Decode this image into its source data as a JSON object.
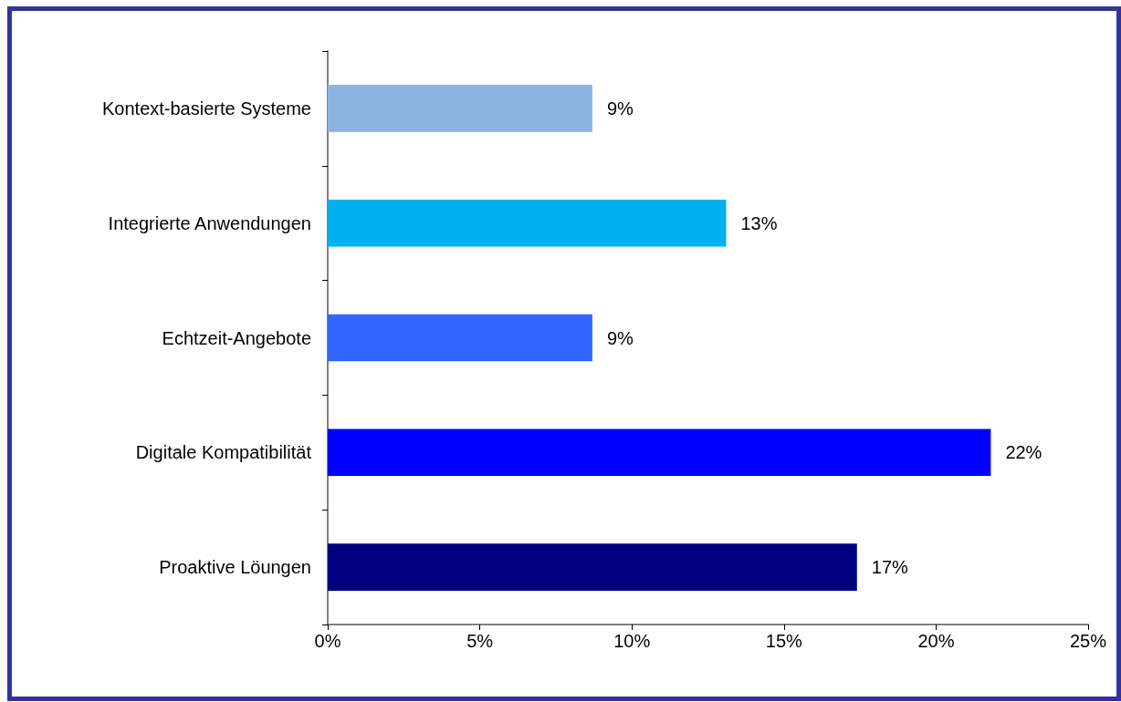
{
  "chart_data": {
    "type": "bar",
    "orientation": "horizontal",
    "categories": [
      "Kontext-basierte Systeme",
      "Integrierte Anwendungen",
      "Echtzeit-Angebote",
      "Digitale Kompatibilität",
      "Proaktive Löungen"
    ],
    "values": [
      8.7,
      13.1,
      8.7,
      21.8,
      17.4
    ],
    "value_labels": [
      "9%",
      "13%",
      "9%",
      "22%",
      "17%"
    ],
    "colors": [
      "#8db3e2",
      "#00b0f0",
      "#3366ff",
      "#0000ff",
      "#000080"
    ],
    "xlim": [
      0,
      25
    ],
    "xticks": [
      {
        "value": 0,
        "label": "0%"
      },
      {
        "value": 5,
        "label": "5%"
      },
      {
        "value": 10,
        "label": "10%"
      },
      {
        "value": 15,
        "label": "15%"
      },
      {
        "value": 20,
        "label": "20%"
      },
      {
        "value": 25,
        "label": "25%"
      }
    ]
  }
}
